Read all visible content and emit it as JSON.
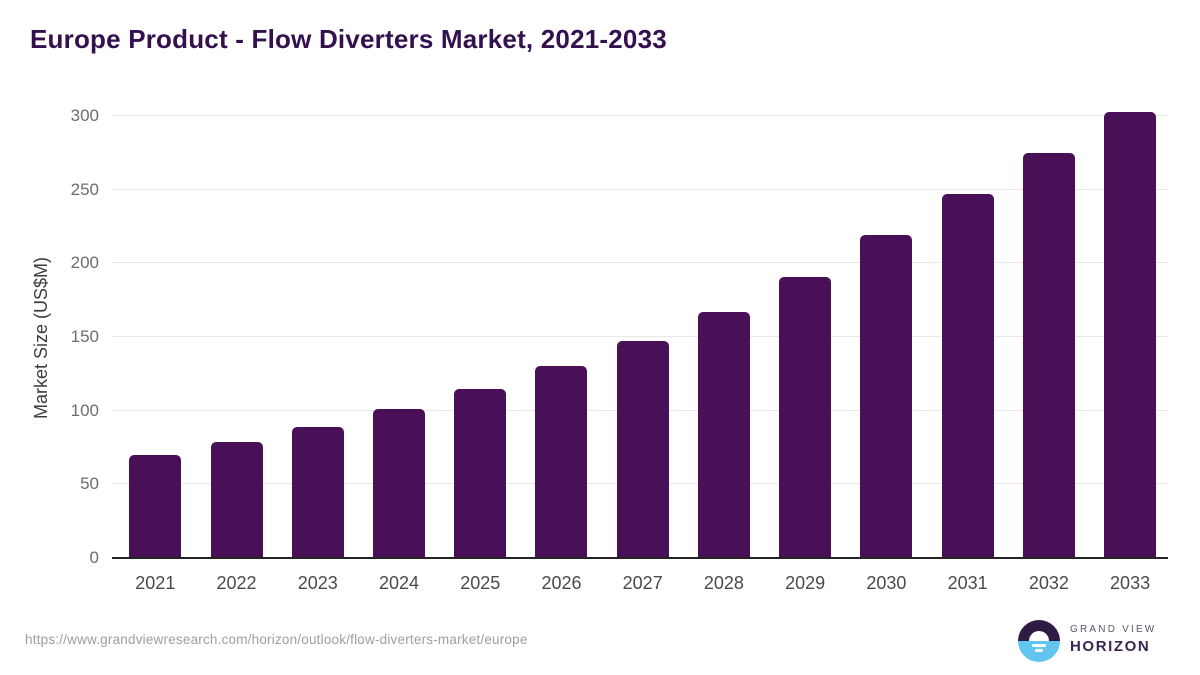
{
  "page": {
    "source_url": "https://www.grandviewresearch.com/horizon/outlook/flow-diverters-market/europe"
  },
  "chart_data": {
    "type": "bar",
    "title": "Europe Product - Flow Diverters Market, 2021-2033",
    "categories": [
      "2021",
      "2022",
      "2023",
      "2024",
      "2025",
      "2026",
      "2027",
      "2028",
      "2029",
      "2030",
      "2031",
      "2032",
      "2033"
    ],
    "values": [
      70,
      79,
      89,
      101,
      115,
      130,
      147,
      167,
      191,
      219,
      247,
      275,
      303
    ],
    "xlabel": "",
    "ylabel": "Market Size (US$M)",
    "ylim": [
      0,
      300
    ],
    "yticks": [
      0,
      50,
      100,
      150,
      200,
      250,
      300
    ],
    "grid": true,
    "legend": "none",
    "bar_color": "#4a1057",
    "gridline_color": "#e7e7e7",
    "axis_line_color": "#242424",
    "title_color": "#33104e"
  },
  "logo": {
    "icon": "sunrise-circle-icon",
    "brand_top": "GRAND VIEW",
    "brand_bottom": "HORIZON",
    "colors": {
      "circle_top": "#2f1c44",
      "circle_bottom": "#62c5f0",
      "horizon_text": "#3b2353",
      "grand_view_text": "#5d5866"
    }
  }
}
